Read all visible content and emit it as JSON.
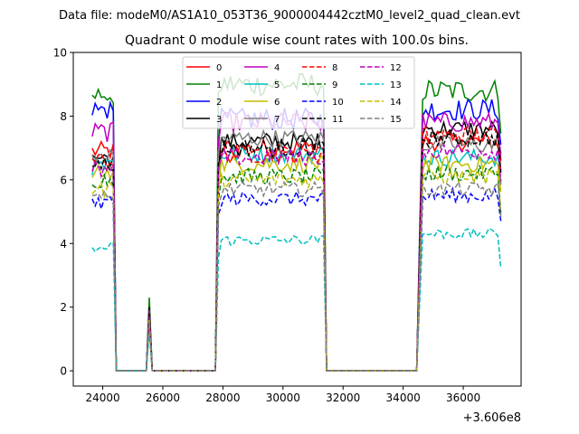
{
  "chart_data": {
    "type": "line",
    "suptitle": "Data file: modeM0/AS1A10_053T36_9000004442cztM0_level2_quad_clean.evt",
    "title": "Quadrant 0 module wise count rates with 100.0s bins.",
    "xlabel": "",
    "ylabel": "",
    "x_offset_label": "+3.606e8",
    "xlim": [
      23020,
      37925
    ],
    "ylim": [
      -0.48,
      10
    ],
    "xticks": [
      24000,
      26000,
      28000,
      30000,
      32000,
      34000,
      36000
    ],
    "xtick_labels": [
      "24000",
      "26000",
      "28000",
      "30000",
      "32000",
      "34000",
      "36000"
    ],
    "yticks": [
      0,
      2,
      4,
      6,
      8,
      10
    ],
    "ytick_labels": [
      "0",
      "2",
      "4",
      "6",
      "8",
      "10"
    ],
    "grid": false,
    "legend_placement": "upper-center",
    "bin_size": 100,
    "x_start": 23650,
    "x_end": 37250,
    "segments_on": [
      [
        23650,
        24350
      ],
      [
        27850,
        31350
      ],
      [
        34650,
        37250
      ]
    ],
    "spike": {
      "x": 25550
    },
    "jitter": 0.3,
    "series": [
      {
        "name": "0",
        "color": "#ff0000",
        "style": "solid",
        "levels": [
          6.9,
          7.0,
          7.2
        ],
        "spike": 1.8
      },
      {
        "name": "1",
        "color": "#008000",
        "style": "solid",
        "levels": [
          8.7,
          9.0,
          8.8
        ],
        "spike": 2.3
      },
      {
        "name": "2",
        "color": "#0000ff",
        "style": "solid",
        "levels": [
          8.2,
          7.9,
          8.2
        ],
        "spike": 1.9
      },
      {
        "name": "3",
        "color": "#000000",
        "style": "solid",
        "levels": [
          6.7,
          7.2,
          7.6
        ],
        "spike": 2.0
      },
      {
        "name": "4",
        "color": "#bf00bf",
        "style": "solid",
        "levels": [
          7.5,
          7.8,
          7.8
        ],
        "spike": 1.9
      },
      {
        "name": "5",
        "color": "#00bfbf",
        "style": "solid",
        "levels": [
          6.4,
          6.8,
          6.7
        ],
        "spike": 1.7
      },
      {
        "name": "6",
        "color": "#bfbf00",
        "style": "solid",
        "levels": [
          6.2,
          6.5,
          6.5
        ],
        "spike": 1.7
      },
      {
        "name": "7",
        "color": "#808080",
        "style": "solid",
        "levels": [
          6.7,
          7.3,
          7.1
        ],
        "spike": 1.7
      },
      {
        "name": "8",
        "color": "#ff0000",
        "style": "dashed",
        "levels": [
          6.6,
          6.8,
          7.4
        ],
        "spike": 1.8
      },
      {
        "name": "9",
        "color": "#008000",
        "style": "dashed",
        "levels": [
          6.0,
          6.1,
          6.2
        ],
        "spike": 1.7
      },
      {
        "name": "10",
        "color": "#0000ff",
        "style": "dashed",
        "levels": [
          5.3,
          5.4,
          5.5
        ],
        "spike": 1.6
      },
      {
        "name": "11",
        "color": "#000000",
        "style": "dashed",
        "levels": [
          6.5,
          7.0,
          7.3
        ],
        "spike": 1.8
      },
      {
        "name": "12",
        "color": "#bf00bf",
        "style": "dashed",
        "levels": [
          6.3,
          6.7,
          6.9
        ],
        "spike": 1.7
      },
      {
        "name": "13",
        "color": "#00bfbf",
        "style": "dashed",
        "levels": [
          3.9,
          4.1,
          4.3
        ],
        "spike": 1.2
      },
      {
        "name": "14",
        "color": "#bfbf00",
        "style": "dashed",
        "levels": [
          5.7,
          6.0,
          6.1
        ],
        "spike": 1.6
      },
      {
        "name": "15",
        "color": "#808080",
        "style": "dashed",
        "levels": [
          5.4,
          5.7,
          5.7
        ],
        "spike": 1.5
      }
    ]
  }
}
